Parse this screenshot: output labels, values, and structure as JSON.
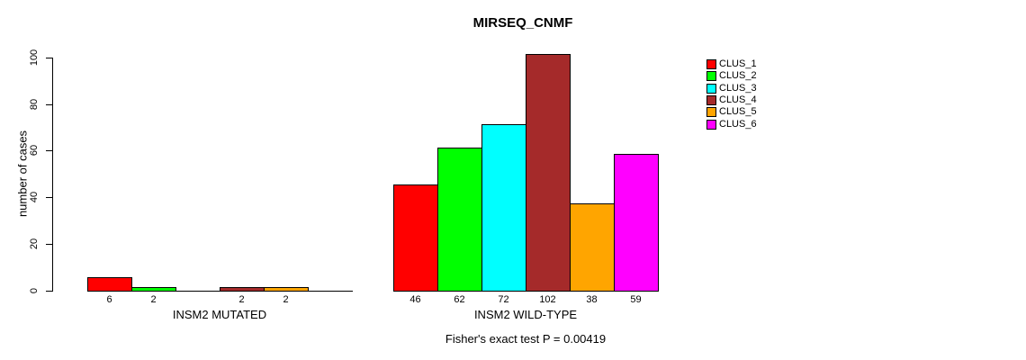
{
  "chart_data": {
    "type": "bar",
    "title": "MIRSEQ_CNMF",
    "ylabel": "number of cases",
    "ylim": [
      0,
      100
    ],
    "yticks": [
      0,
      20,
      40,
      60,
      80,
      100
    ],
    "grid": false,
    "legend_position": "right",
    "series": [
      {
        "name": "CLUS_1",
        "color": "#FF0000"
      },
      {
        "name": "CLUS_2",
        "color": "#00FF00"
      },
      {
        "name": "CLUS_3",
        "color": "#00FFFF"
      },
      {
        "name": "CLUS_4",
        "color": "#A52A2A"
      },
      {
        "name": "CLUS_5",
        "color": "#FFA500"
      },
      {
        "name": "CLUS_6",
        "color": "#FF00FF"
      }
    ],
    "groups": [
      {
        "label": "INSM2 MUTATED",
        "values": [
          6,
          2,
          0,
          2,
          2,
          0
        ]
      },
      {
        "label": "INSM2 WILD-TYPE",
        "values": [
          46,
          62,
          72,
          102,
          38,
          59
        ]
      }
    ],
    "value_labels_shown_only_when_nonzero": true,
    "annotation": "Fisher's exact test P = 0.00419",
    "axis_color": "#000000",
    "background_color": "#FFFFFF"
  }
}
